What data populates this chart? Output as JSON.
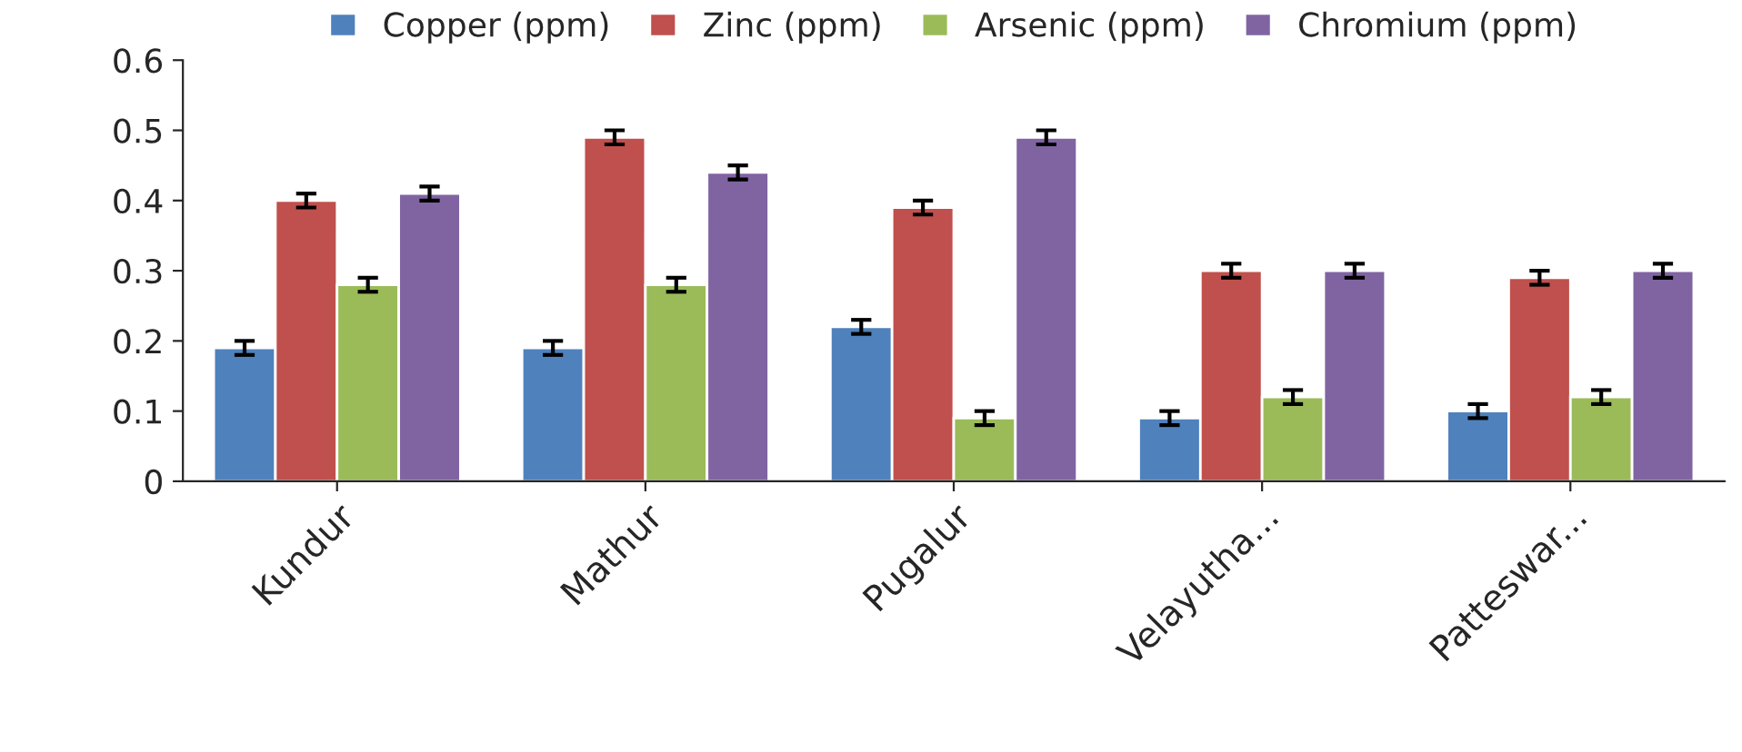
{
  "chart_data": {
    "type": "bar",
    "categories": [
      "Kundur",
      "Mathur",
      "Pugalur",
      "Velayutha...",
      "Patteswar..."
    ],
    "series": [
      {
        "name": "Copper (ppm)",
        "color": "#4f81bd",
        "values": [
          0.19,
          0.19,
          0.22,
          0.09,
          0.1
        ],
        "errors": [
          0.01,
          0.01,
          0.01,
          0.01,
          0.01
        ]
      },
      {
        "name": "Zinc (ppm)",
        "color": "#c0504d",
        "values": [
          0.4,
          0.49,
          0.39,
          0.3,
          0.29
        ],
        "errors": [
          0.01,
          0.01,
          0.01,
          0.01,
          0.01
        ]
      },
      {
        "name": "Arsenic (ppm)",
        "color": "#9bbb59",
        "values": [
          0.28,
          0.28,
          0.09,
          0.12,
          0.12
        ],
        "errors": [
          0.01,
          0.01,
          0.01,
          0.01,
          0.01
        ]
      },
      {
        "name": "Chromium (ppm)",
        "color": "#8064a2",
        "values": [
          0.41,
          0.44,
          0.49,
          0.3,
          0.3
        ],
        "errors": [
          0.01,
          0.01,
          0.01,
          0.01,
          0.01
        ]
      }
    ],
    "ylim": [
      0,
      0.6
    ],
    "yticks": [
      0,
      0.1,
      0.2,
      0.3,
      0.4,
      0.5,
      0.6
    ],
    "grid": false,
    "legend": "top"
  }
}
